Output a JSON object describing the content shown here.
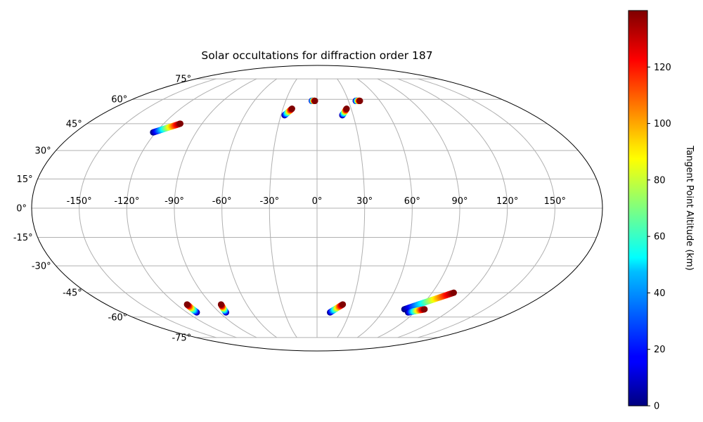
{
  "chart_data": {
    "type": "scatter",
    "projection": "mollweide",
    "title": "Solar occultations for diffraction order 187",
    "grid": true,
    "lon_ticks": [
      "-150°",
      "-120°",
      "-90°",
      "-60°",
      "-30°",
      "0°",
      "30°",
      "60°",
      "90°",
      "120°",
      "150°"
    ],
    "lat_ticks": [
      "75°",
      "60°",
      "45°",
      "30°",
      "15°",
      "0°",
      "-15°",
      "-30°",
      "-45°",
      "-60°",
      "-75°"
    ],
    "colorbar": {
      "label": "Tangent Point Altitude (km)",
      "colormap": "jet",
      "range": [
        0,
        140
      ],
      "ticks": [
        "0",
        "20",
        "40",
        "60",
        "80",
        "100",
        "120"
      ]
    },
    "series": [
      {
        "lon_range": [
          -122,
          -107
        ],
        "lat_range": [
          40,
          45
        ],
        "alt_range": [
          0,
          140
        ]
      },
      {
        "lon_range": [
          -27,
          -22
        ],
        "lat_range": [
          50,
          54
        ],
        "alt_range": [
          0,
          140
        ]
      },
      {
        "lon_range": [
          -5,
          -2
        ],
        "lat_range": [
          59,
          59
        ],
        "alt_range": [
          0,
          140
        ]
      },
      {
        "lon_range": [
          21,
          26
        ],
        "lat_range": [
          50,
          54
        ],
        "alt_range": [
          0,
          140
        ]
      },
      {
        "lon_range": [
          37,
          41
        ],
        "lat_range": [
          59,
          59
        ],
        "alt_range": [
          0,
          140
        ]
      },
      {
        "lon_range": [
          -111,
          -111
        ],
        "lat_range": [
          -57,
          -52
        ],
        "alt_range": [
          0,
          140
        ]
      },
      {
        "lon_range": [
          -84,
          -82
        ],
        "lat_range": [
          -57,
          -52
        ],
        "alt_range": [
          0,
          140
        ]
      },
      {
        "lon_range": [
          12,
          22
        ],
        "lat_range": [
          -57,
          -52
        ],
        "alt_range": [
          0,
          140
        ]
      },
      {
        "lon_range": [
          78,
          107
        ],
        "lat_range": [
          -55,
          -45
        ],
        "alt_range": [
          0,
          140
        ]
      },
      {
        "lon_range": [
          84,
          96
        ],
        "lat_range": [
          -57,
          -55
        ],
        "alt_range": [
          0,
          140
        ]
      }
    ]
  }
}
